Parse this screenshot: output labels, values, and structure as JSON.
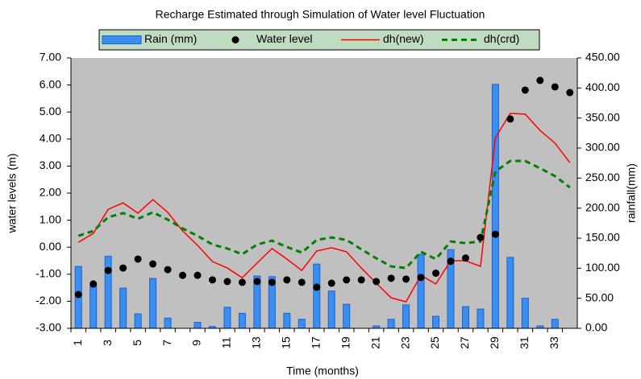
{
  "chart_data": {
    "type": "combo",
    "title": "Recharge Estimated through Simulation of Water level Fluctuation",
    "x_label": "Time (months)",
    "y_label": "water levels (m)",
    "y2_label": "rainfall(mm)",
    "legend": "top",
    "background": "#c0c0c0",
    "categories": [
      1,
      null,
      3,
      null,
      5,
      null,
      7,
      null,
      9,
      null,
      11,
      null,
      13,
      null,
      15,
      null,
      17,
      null,
      19,
      null,
      21,
      null,
      23,
      null,
      25,
      null,
      27,
      null,
      29,
      null,
      31,
      null,
      33,
      null
    ],
    "ylim": [
      -3,
      7
    ],
    "yticks": [
      {
        "value": -3,
        "label": "-3.00"
      },
      {
        "value": -2,
        "label": "-2.00"
      },
      {
        "value": -1,
        "label": "-1.00"
      },
      {
        "value": 0,
        "label": "0.00"
      },
      {
        "value": 1,
        "label": "1.00"
      },
      {
        "value": 2,
        "label": "2.00"
      },
      {
        "value": 3,
        "label": "3.00"
      },
      {
        "value": 4,
        "label": "4.00"
      },
      {
        "value": 5,
        "label": "5.00"
      },
      {
        "value": 6,
        "label": "6.00"
      },
      {
        "value": 7,
        "label": "7.00"
      }
    ],
    "y2lim": [
      0,
      450
    ],
    "y2ticks": [
      {
        "value": 0,
        "label": "0.00"
      },
      {
        "value": 50,
        "label": "50.00"
      },
      {
        "value": 100,
        "label": "100.00"
      },
      {
        "value": 150,
        "label": "150.00"
      },
      {
        "value": 200,
        "label": "200.00"
      },
      {
        "value": 250,
        "label": "250.00"
      },
      {
        "value": 300,
        "label": "300.00"
      },
      {
        "value": 350,
        "label": "350.00"
      },
      {
        "value": 400,
        "label": "400.00"
      },
      {
        "value": 450,
        "label": "450.00"
      }
    ],
    "series": [
      {
        "name": "Rain (mm)",
        "type": "bar",
        "axis": "y2",
        "color": "#3a8ef0",
        "values": [
          103,
          71,
          120,
          67,
          24,
          83,
          17,
          0,
          10,
          3,
          35,
          25,
          87,
          86,
          25,
          15,
          107,
          62,
          40,
          0,
          4,
          15,
          39,
          123,
          20,
          131,
          36,
          32,
          406,
          118,
          50,
          4,
          15,
          0
        ]
      },
      {
        "name": "Water level",
        "type": "scatter",
        "color": "#000000",
        "values": [
          -1.75,
          -1.36,
          -0.86,
          -0.77,
          -0.44,
          -0.62,
          -0.83,
          -1.04,
          -1.04,
          -1.21,
          -1.27,
          -1.3,
          -1.27,
          -1.3,
          -1.21,
          -1.3,
          -1.48,
          -1.33,
          -1.21,
          -1.21,
          -1.27,
          -1.15,
          -1.18,
          -1.12,
          -0.96,
          -0.52,
          -0.4,
          0.36,
          0.48,
          4.74,
          5.81,
          6.17,
          5.93,
          5.72
        ]
      },
      {
        "name": "dh(new)",
        "type": "line",
        "color": "#ff0000",
        "dashed": false,
        "values": [
          0.18,
          0.51,
          1.4,
          1.64,
          1.26,
          1.76,
          1.29,
          0.6,
          0.07,
          -0.53,
          -0.77,
          -1.13,
          -0.59,
          -0.05,
          -0.44,
          -0.86,
          -0.14,
          -0.02,
          -0.17,
          -0.77,
          -1.33,
          -1.87,
          -2.02,
          -1.04,
          -1.36,
          -0.5,
          -0.5,
          -0.71,
          4.05,
          4.95,
          4.92,
          4.32,
          3.85,
          3.13
        ]
      },
      {
        "name": "dh(crd)",
        "type": "line",
        "color": "#008000",
        "dashed": true,
        "values": [
          0.42,
          0.6,
          1.11,
          1.26,
          1.05,
          1.29,
          1.02,
          0.69,
          0.42,
          0.1,
          -0.05,
          -0.26,
          0.1,
          0.24,
          0.01,
          -0.2,
          0.27,
          0.36,
          0.27,
          -0.08,
          -0.41,
          -0.71,
          -0.77,
          -0.17,
          -0.44,
          0.21,
          0.15,
          0.21,
          2.8,
          3.19,
          3.19,
          2.92,
          2.63,
          2.21
        ]
      }
    ]
  }
}
